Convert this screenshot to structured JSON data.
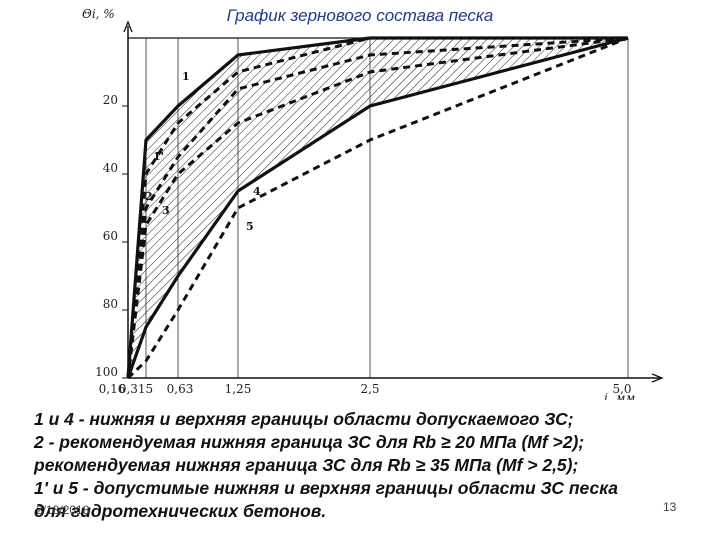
{
  "chart_data": {
    "type": "line",
    "title": "График зернового состава песка",
    "ylabel": "Θi, %",
    "xlabel": "i, мм",
    "x_ticks": [
      "0,16",
      "0,315",
      "0,63",
      "1,25",
      "2,5",
      "5,0"
    ],
    "y_ticks": [
      "20",
      "40",
      "60",
      "80",
      "100"
    ],
    "y_inverted": true,
    "ylim": [
      0,
      100
    ],
    "grid": "vertical lines at sieve sizes",
    "hatched_region": "between curves 1 and 4",
    "series": [
      {
        "name": "1",
        "style": "solid",
        "x": [
          "0,16",
          "0,315",
          "0,63",
          "1,25",
          "2,5",
          "5,0"
        ],
        "y": [
          100,
          30,
          20,
          5,
          0,
          0
        ]
      },
      {
        "name": "1'",
        "style": "dashed",
        "x": [
          "0,16",
          "0,315",
          "0,63",
          "1,25",
          "2,5",
          "5,0"
        ],
        "y": [
          100,
          40,
          25,
          10,
          0,
          0
        ]
      },
      {
        "name": "2",
        "style": "dashed",
        "x": [
          "0,16",
          "0,315",
          "0,63",
          "1,25",
          "2,5",
          "5,0"
        ],
        "y": [
          100,
          50,
          35,
          15,
          5,
          0
        ]
      },
      {
        "name": "3",
        "style": "dashed",
        "x": [
          "0,16",
          "0,315",
          "0,63",
          "1,25",
          "2,5",
          "5,0"
        ],
        "y": [
          100,
          55,
          40,
          25,
          10,
          0
        ]
      },
      {
        "name": "4",
        "style": "solid",
        "x": [
          "0,16",
          "0,315",
          "0,63",
          "1,25",
          "2,5",
          "5,0"
        ],
        "y": [
          100,
          85,
          70,
          45,
          20,
          0
        ]
      },
      {
        "name": "5",
        "style": "dashed",
        "x": [
          "0,16",
          "0,315",
          "0,63",
          "1,25",
          "2,5",
          "5,0"
        ],
        "y": [
          100,
          95,
          80,
          50,
          30,
          0
        ]
      }
    ]
  },
  "legend_lines": [
    "1 и 4 - нижняя и верхняя границы области допускаемого ЗС;",
    "2 - рекомендуемая нижняя граница ЗС для Rb ≥ 20 МПа (Mf >2);",
    "рекомендуемая нижняя граница ЗС для Rb ≥ 35 МПа (Mf > 2,5);",
    "1' и 5 - допустимые нижняя и верхняя границы области ЗС песка",
    "для гидротехнических бетонов."
  ],
  "footer": {
    "date": "2/18/2018",
    "page": "13"
  }
}
